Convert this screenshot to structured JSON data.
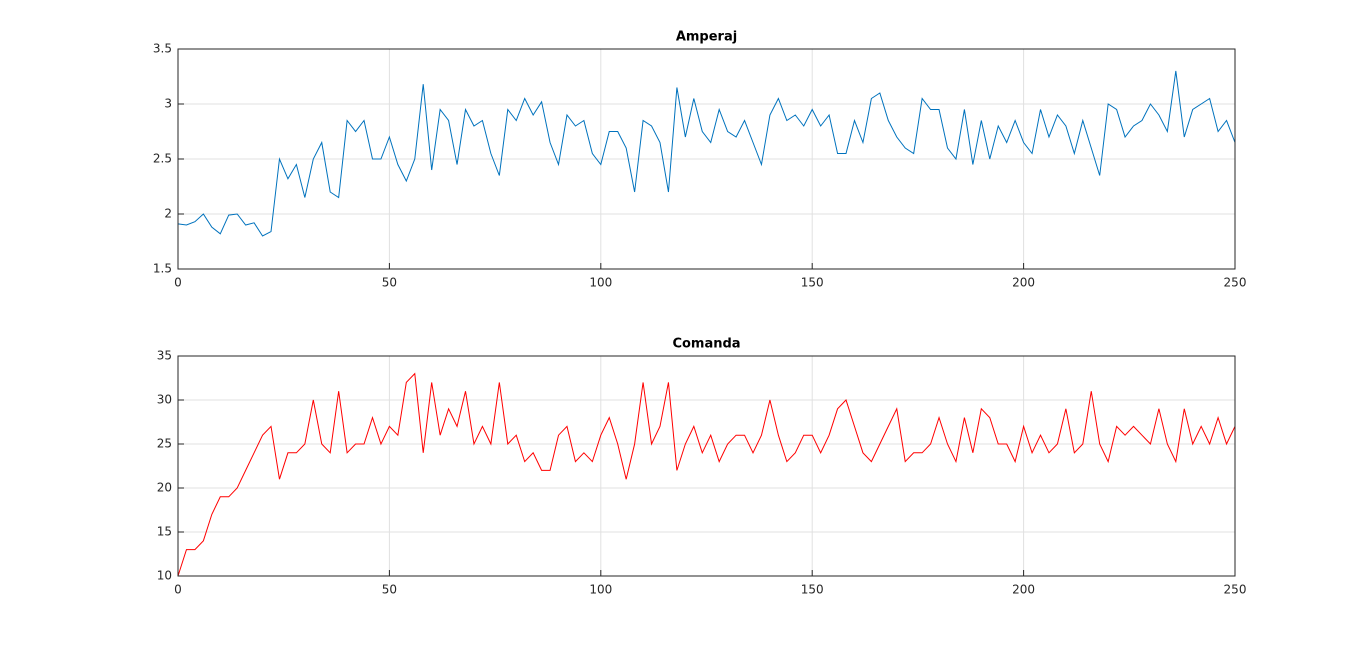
{
  "chart_data": [
    {
      "type": "line",
      "title": "Amperaj",
      "color": "#0072bd",
      "grid": true,
      "xlim": [
        0,
        250
      ],
      "xticks": [
        0,
        50,
        100,
        150,
        200,
        250
      ],
      "ylim": [
        1.5,
        3.5
      ],
      "yticks": [
        1.5,
        2,
        2.5,
        3,
        3.5
      ],
      "x": [
        0,
        2,
        4,
        6,
        8,
        10,
        12,
        14,
        16,
        18,
        20,
        22,
        24,
        26,
        28,
        30,
        32,
        34,
        36,
        38,
        40,
        42,
        44,
        46,
        48,
        50,
        52,
        54,
        56,
        58,
        60,
        62,
        64,
        66,
        68,
        70,
        72,
        74,
        76,
        78,
        80,
        82,
        84,
        86,
        88,
        90,
        92,
        94,
        96,
        98,
        100,
        102,
        104,
        106,
        108,
        110,
        112,
        114,
        116,
        118,
        120,
        122,
        124,
        126,
        128,
        130,
        132,
        134,
        136,
        138,
        140,
        142,
        144,
        146,
        148,
        150,
        152,
        154,
        156,
        158,
        160,
        162,
        164,
        166,
        168,
        170,
        172,
        174,
        176,
        178,
        180,
        182,
        184,
        186,
        188,
        190,
        192,
        194,
        196,
        198,
        200,
        202,
        204,
        206,
        208,
        210,
        212,
        214,
        216,
        218,
        220,
        222,
        224,
        226,
        228,
        230,
        232,
        234,
        236,
        238,
        240,
        242,
        244,
        246,
        248,
        250
      ],
      "values": [
        1.91,
        1.9,
        1.93,
        2.0,
        1.88,
        1.82,
        1.99,
        2.0,
        1.9,
        1.92,
        1.8,
        1.84,
        2.5,
        2.32,
        2.45,
        2.15,
        2.5,
        2.65,
        2.2,
        2.15,
        2.85,
        2.75,
        2.85,
        2.5,
        2.5,
        2.7,
        2.45,
        2.3,
        2.5,
        3.18,
        2.4,
        2.95,
        2.85,
        2.45,
        2.95,
        2.8,
        2.85,
        2.55,
        2.35,
        2.95,
        2.85,
        3.05,
        2.9,
        3.02,
        2.65,
        2.45,
        2.9,
        2.8,
        2.85,
        2.55,
        2.45,
        2.75,
        2.75,
        2.6,
        2.2,
        2.85,
        2.8,
        2.65,
        2.2,
        3.15,
        2.7,
        3.05,
        2.75,
        2.65,
        2.95,
        2.75,
        2.7,
        2.85,
        2.65,
        2.45,
        2.9,
        3.05,
        2.85,
        2.9,
        2.8,
        2.95,
        2.8,
        2.9,
        2.55,
        2.55,
        2.85,
        2.65,
        3.05,
        3.1,
        2.85,
        2.7,
        2.6,
        2.55,
        3.05,
        2.95,
        2.95,
        2.6,
        2.5,
        2.95,
        2.45,
        2.85,
        2.5,
        2.8,
        2.65,
        2.85,
        2.65,
        2.55,
        2.95,
        2.7,
        2.9,
        2.8,
        2.55,
        2.85,
        2.6,
        2.35,
        3.0,
        2.95,
        2.7,
        2.8,
        2.85,
        3.0,
        2.9,
        2.75,
        3.3,
        2.7,
        2.95,
        3.0,
        3.05,
        2.75,
        2.85,
        2.65
      ]
    },
    {
      "type": "line",
      "title": "Comanda",
      "color": "#ff0000",
      "grid": true,
      "xlim": [
        0,
        250
      ],
      "xticks": [
        0,
        50,
        100,
        150,
        200,
        250
      ],
      "ylim": [
        10,
        35
      ],
      "yticks": [
        10,
        15,
        20,
        25,
        30,
        35
      ],
      "x": [
        0,
        2,
        4,
        6,
        8,
        10,
        12,
        14,
        16,
        18,
        20,
        22,
        24,
        26,
        28,
        30,
        32,
        34,
        36,
        38,
        40,
        42,
        44,
        46,
        48,
        50,
        52,
        54,
        56,
        58,
        60,
        62,
        64,
        66,
        68,
        70,
        72,
        74,
        76,
        78,
        80,
        82,
        84,
        86,
        88,
        90,
        92,
        94,
        96,
        98,
        100,
        102,
        104,
        106,
        108,
        110,
        112,
        114,
        116,
        118,
        120,
        122,
        124,
        126,
        128,
        130,
        132,
        134,
        136,
        138,
        140,
        142,
        144,
        146,
        148,
        150,
        152,
        154,
        156,
        158,
        160,
        162,
        164,
        166,
        168,
        170,
        172,
        174,
        176,
        178,
        180,
        182,
        184,
        186,
        188,
        190,
        192,
        194,
        196,
        198,
        200,
        202,
        204,
        206,
        208,
        210,
        212,
        214,
        216,
        218,
        220,
        222,
        224,
        226,
        228,
        230,
        232,
        234,
        236,
        238,
        240,
        242,
        244,
        246,
        248,
        250
      ],
      "values": [
        10,
        13,
        13,
        14,
        17,
        19,
        19,
        20,
        22,
        24,
        26,
        27,
        21,
        24,
        24,
        25,
        30,
        25,
        24,
        31,
        24,
        25,
        25,
        28,
        25,
        27,
        26,
        32,
        33,
        24,
        32,
        26,
        29,
        27,
        31,
        25,
        27,
        25,
        32,
        25,
        26,
        23,
        24,
        22,
        22,
        26,
        27,
        23,
        24,
        23,
        26,
        28,
        25,
        21,
        25,
        32,
        25,
        27,
        32,
        22,
        25,
        27,
        24,
        26,
        23,
        25,
        26,
        26,
        24,
        26,
        30,
        26,
        23,
        24,
        26,
        26,
        24,
        26,
        29,
        30,
        27,
        24,
        23,
        25,
        27,
        29,
        23,
        24,
        24,
        25,
        28,
        25,
        23,
        28,
        24,
        29,
        28,
        25,
        25,
        23,
        27,
        24,
        26,
        24,
        25,
        29,
        24,
        25,
        31,
        25,
        23,
        27,
        26,
        27,
        26,
        25,
        29,
        25,
        23,
        29,
        25,
        27,
        25,
        28,
        25,
        27
      ]
    }
  ]
}
